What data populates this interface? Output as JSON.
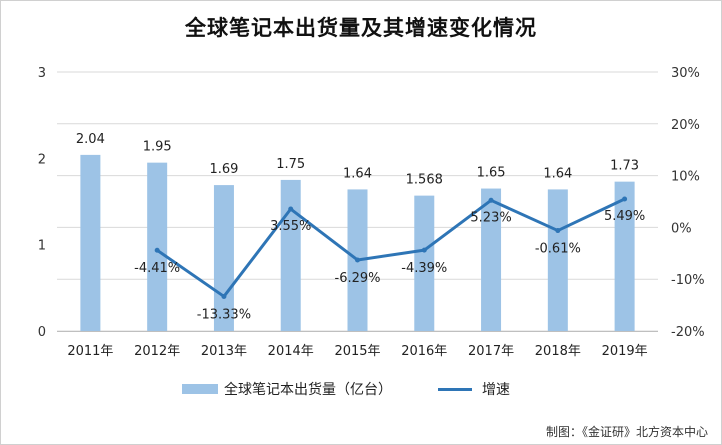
{
  "chart_data": {
    "type": "bar+line",
    "title": "全球笔记本出货量及其增速变化情况",
    "categories": [
      "2011年",
      "2012年",
      "2013年",
      "2014年",
      "2015年",
      "2016年",
      "2017年",
      "2018年",
      "2019年"
    ],
    "series": [
      {
        "name": "全球笔记本出货量（亿台）",
        "type": "bar",
        "axis": "left",
        "values": [
          2.04,
          1.95,
          1.69,
          1.75,
          1.64,
          1.568,
          1.65,
          1.64,
          1.73
        ],
        "labels": [
          "2.04",
          "1.95",
          "1.69",
          "1.75",
          "1.64",
          "1.568",
          "1.65",
          "1.64",
          "1.73"
        ],
        "color": "#9dc3e6"
      },
      {
        "name": "增速",
        "type": "line",
        "axis": "right",
        "values": [
          null,
          -4.41,
          -13.33,
          3.55,
          -6.29,
          -4.39,
          5.23,
          -0.61,
          5.49
        ],
        "labels": [
          null,
          "-4.41%",
          "-13.33%",
          "3.55%",
          "-6.29%",
          "-4.39%",
          "5.23%",
          "-0.61%",
          "5.49%"
        ],
        "color": "#2e75b6"
      }
    ],
    "y_left": {
      "min": 0,
      "max": 3,
      "ticks": [
        "0",
        "1",
        "2",
        "3"
      ]
    },
    "y_right": {
      "min": -20,
      "max": 30,
      "ticks": [
        "-20%",
        "-10%",
        "0%",
        "10%",
        "20%",
        "30%"
      ]
    },
    "grid": true,
    "legend": "bottom"
  },
  "source_note": "制图：《金证研》北方资本中心"
}
